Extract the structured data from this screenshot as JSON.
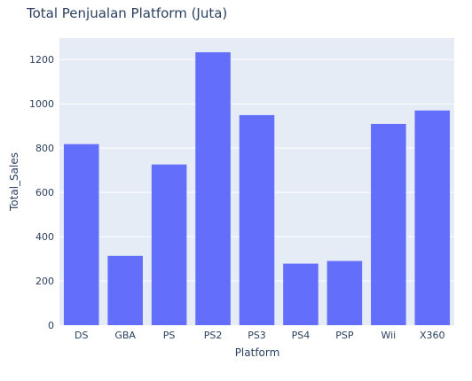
{
  "chart_data": {
    "type": "bar",
    "title": "Total Penjualan Platform (Juta)",
    "xlabel": "Platform",
    "ylabel": "Total_Sales",
    "categories": [
      "DS",
      "GBA",
      "PS",
      "PS2",
      "PS3",
      "PS4",
      "PSP",
      "Wii",
      "X360"
    ],
    "values": [
      818,
      313,
      726,
      1233,
      949,
      278,
      290,
      909,
      970
    ],
    "ylim": [
      0,
      1297
    ],
    "yticks": [
      0,
      200,
      400,
      600,
      800,
      1000,
      1200
    ],
    "grid": true,
    "bar_color": "#636efa",
    "plot_bg": "#e5ecf6",
    "text_color": "#2a3f5f"
  }
}
